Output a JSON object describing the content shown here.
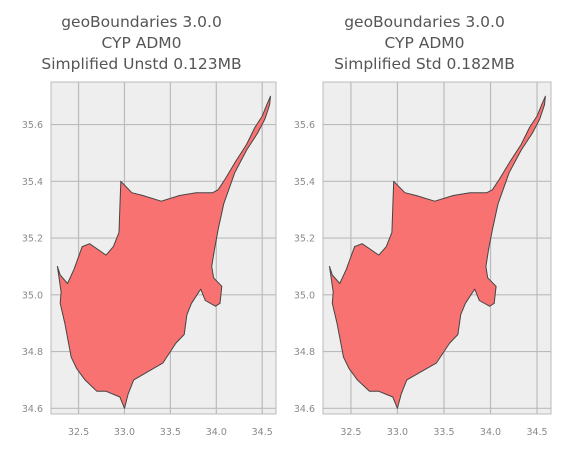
{
  "panels": [
    {
      "title": [
        "geoBoundaries 3.0.0",
        "CYP ADM0",
        "Simplified Unstd 0.123MB"
      ],
      "x_ticks": [
        "32.5",
        "33.0",
        "33.5",
        "34.0",
        "34.5"
      ],
      "y_ticks": [
        "35.6",
        "35.4",
        "35.2",
        "35.0",
        "34.8",
        "34.6"
      ]
    },
    {
      "title": [
        "geoBoundaries 3.0.0",
        "CYP ADM0",
        "Simplified Std 0.182MB"
      ],
      "x_ticks": [
        "32.5",
        "33.0",
        "33.5",
        "34.0",
        "34.5"
      ],
      "y_ticks": [
        "35.6",
        "35.4",
        "35.2",
        "35.0",
        "34.8",
        "34.6"
      ]
    }
  ],
  "map": {
    "x_range": [
      32.2,
      34.65
    ],
    "y_range": [
      34.58,
      35.75
    ],
    "x_tick_values": [
      32.5,
      33.0,
      33.5,
      34.0,
      34.5
    ],
    "y_tick_values": [
      35.6,
      35.4,
      35.2,
      35.0,
      34.8,
      34.6
    ],
    "grid": true,
    "colors": {
      "fill": "#f87272",
      "outline": "#444444",
      "background": "#eeeeee",
      "grid": "#bbbbbb"
    }
  }
}
